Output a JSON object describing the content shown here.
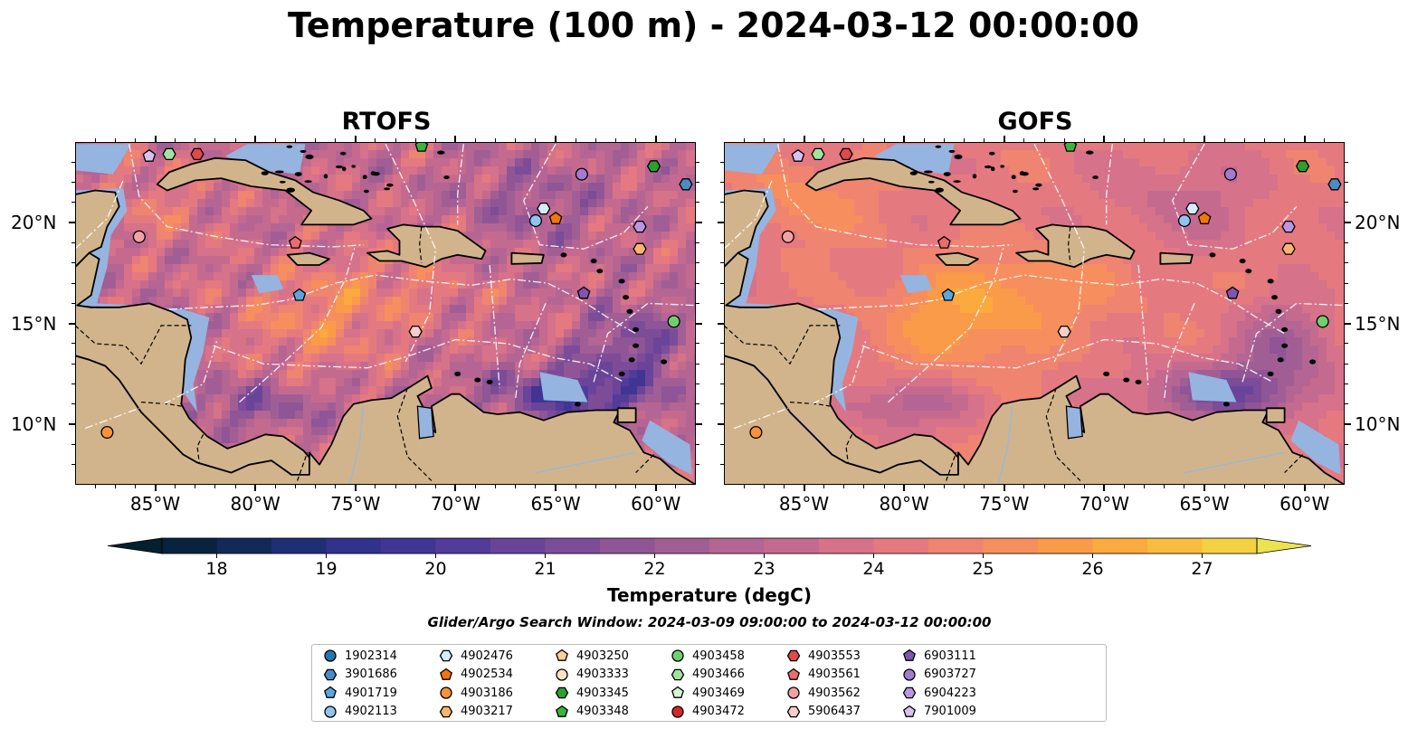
{
  "title": "Temperature (100 m) - 2024-03-12 00:00:00",
  "panels": [
    {
      "name": "RTOFS",
      "variant": "rtofs"
    },
    {
      "name": "GOFS",
      "variant": "gofs"
    }
  ],
  "map": {
    "lon_range": [
      -89,
      -58
    ],
    "lat_range": [
      7,
      24
    ],
    "x_ticks": [
      "85°W",
      "80°W",
      "75°W",
      "70°W",
      "65°W",
      "60°W"
    ],
    "x_tick_values": [
      -85,
      -80,
      -75,
      -70,
      -65,
      -60
    ],
    "y_ticks": [
      "20°N",
      "15°N",
      "10°N"
    ],
    "y_tick_values": [
      20,
      15,
      10
    ]
  },
  "colorbar": {
    "label": "Temperature (degC)",
    "ticks": [
      "18",
      "19",
      "20",
      "21",
      "22",
      "23",
      "24",
      "25",
      "26",
      "27"
    ],
    "tick_values": [
      18,
      19,
      20,
      21,
      22,
      23,
      24,
      25,
      26,
      27
    ],
    "min": 17.5,
    "max": 27.5,
    "colors": [
      "#04202f",
      "#08233f",
      "#112a57",
      "#1e2f75",
      "#31328a",
      "#413594",
      "#533b99",
      "#6a4499",
      "#7c4c98",
      "#8f5596",
      "#a15e95",
      "#b46593",
      "#c56a8f",
      "#d67289",
      "#e47a80",
      "#ef8470",
      "#f68f5d",
      "#fa9b49",
      "#fbaa3d",
      "#f9bc3e",
      "#f4d043",
      "#ebe351"
    ]
  },
  "search_window": "Glider/Argo Search Window: 2024-03-09 09:00:00 to 2024-03-12 00:00:00",
  "colors": {
    "land": "#d2b48c",
    "shallow": "#95b4e0",
    "pacific": "#062033",
    "coast": "#000000",
    "eez": "#ffffff"
  },
  "floats": [
    {
      "id": "1902314",
      "marker": "circle",
      "color": "#1f77b4",
      "lon": null,
      "lat": null
    },
    {
      "id": "3901686",
      "marker": "hexagon",
      "color": "#4a8cc4",
      "lon": -58.5,
      "lat": 21.9
    },
    {
      "id": "4901719",
      "marker": "pentagon",
      "color": "#5aa7e0",
      "lon": -77.8,
      "lat": 16.4
    },
    {
      "id": "4902113",
      "marker": "circle",
      "color": "#90c4ef",
      "lon": -66.0,
      "lat": 20.1
    },
    {
      "id": "4902476",
      "marker": "hexagon",
      "color": "#d5ecfb",
      "lon": -65.6,
      "lat": 20.7
    },
    {
      "id": "4902534",
      "marker": "pentagon",
      "color": "#f5750d",
      "lon": -65.0,
      "lat": 20.2
    },
    {
      "id": "4903186",
      "marker": "circle",
      "color": "#f7923a",
      "lon": -87.4,
      "lat": 9.6
    },
    {
      "id": "4903217",
      "marker": "hexagon",
      "color": "#f9b66e",
      "lon": -60.8,
      "lat": 18.7
    },
    {
      "id": "4903250",
      "marker": "pentagon",
      "color": "#fbcf9b",
      "lon": null,
      "lat": null
    },
    {
      "id": "4903333",
      "marker": "circle",
      "color": "#fde2c6",
      "lon": null,
      "lat": null
    },
    {
      "id": "4903345",
      "marker": "hexagon",
      "color": "#2ca02c",
      "lon": -60.1,
      "lat": 22.8
    },
    {
      "id": "4903348",
      "marker": "pentagon",
      "color": "#3cb43c",
      "lon": -71.7,
      "lat": 23.8
    },
    {
      "id": "4903458",
      "marker": "circle",
      "color": "#6fcf6f",
      "lon": -59.1,
      "lat": 15.1
    },
    {
      "id": "4903466",
      "marker": "hexagon",
      "color": "#a2e3a2",
      "lon": -84.3,
      "lat": 23.4
    },
    {
      "id": "4903469",
      "marker": "pentagon",
      "color": "#d6f6d6",
      "lon": null,
      "lat": null
    },
    {
      "id": "4903472",
      "marker": "circle",
      "color": "#d62728",
      "lon": null,
      "lat": null
    },
    {
      "id": "4903553",
      "marker": "hexagon",
      "color": "#e0494a",
      "lon": -82.9,
      "lat": 23.4
    },
    {
      "id": "4903561",
      "marker": "pentagon",
      "color": "#ea6d6e",
      "lon": -78.0,
      "lat": 19.0
    },
    {
      "id": "4903562",
      "marker": "circle",
      "color": "#f1a3a3",
      "lon": -85.8,
      "lat": 19.3
    },
    {
      "id": "5906437",
      "marker": "hexagon",
      "color": "#f8cccb",
      "lon": -72.0,
      "lat": 14.6
    },
    {
      "id": "6903111",
      "marker": "pentagon",
      "color": "#7f55b0",
      "lon": -63.6,
      "lat": 16.5
    },
    {
      "id": "6903727",
      "marker": "circle",
      "color": "#a27cd0",
      "lon": -63.7,
      "lat": 22.4
    },
    {
      "id": "6904223",
      "marker": "hexagon",
      "color": "#bb97e3",
      "lon": -60.8,
      "lat": 19.8
    },
    {
      "id": "7901009",
      "marker": "pentagon",
      "color": "#d9c2f2",
      "lon": -85.3,
      "lat": 23.3
    }
  ]
}
